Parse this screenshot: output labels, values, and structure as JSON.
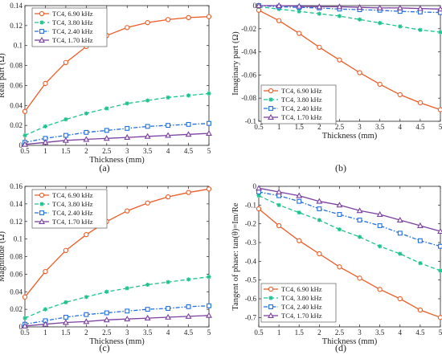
{
  "figure": {
    "panel_letters": [
      "(a)",
      "(b)",
      "(c)",
      "(d)"
    ],
    "shared_xlabel": "Thickness (mm)"
  },
  "series_styles": [
    {
      "name": "TC4, 6.90 kHz",
      "color": "#ec5b24",
      "marker": "circle",
      "dash": "solid"
    },
    {
      "name": "TC4, 3.80 kHz",
      "color": "#1fc28f",
      "marker": "asterisk",
      "dash": "dash"
    },
    {
      "name": "TC4, 2.40 kHz",
      "color": "#1f6fe0",
      "marker": "square",
      "dash": "dashdot"
    },
    {
      "name": "TC4, 1.70 kHz",
      "color": "#7a3fa0",
      "marker": "triangle",
      "dash": "solid"
    }
  ],
  "chart_data": [
    {
      "type": "line",
      "panel": "(a)",
      "xlabel": "Thickness (mm)",
      "ylabel": "Real part (Ω)",
      "x": [
        0.5,
        1,
        1.5,
        2,
        2.5,
        3,
        3.5,
        4,
        4.5,
        5
      ],
      "xlim": [
        0.5,
        5
      ],
      "xticks": [
        "0.5",
        "1",
        "1.5",
        "2",
        "2.5",
        "3",
        "3.5",
        "4",
        "4.5",
        "5"
      ],
      "ylim": [
        0,
        0.14
      ],
      "yticks": [
        "0",
        "0.02",
        "0.04",
        "0.06",
        "0.08",
        "0.1",
        "0.12",
        "0.14"
      ],
      "legend": "top-left",
      "series": [
        {
          "name": "TC4, 6.90 kHz",
          "values": [
            0.034,
            0.062,
            0.083,
            0.099,
            0.11,
            0.118,
            0.123,
            0.126,
            0.128,
            0.129
          ]
        },
        {
          "name": "TC4, 3.80 kHz",
          "values": [
            0.01,
            0.019,
            0.026,
            0.032,
            0.037,
            0.042,
            0.045,
            0.048,
            0.05,
            0.052
          ]
        },
        {
          "name": "TC4, 2.40 kHz",
          "values": [
            0.003,
            0.007,
            0.01,
            0.013,
            0.015,
            0.017,
            0.019,
            0.02,
            0.021,
            0.022
          ]
        },
        {
          "name": "TC4, 1.70 kHz",
          "values": [
            0.001,
            0.003,
            0.005,
            0.006,
            0.007,
            0.008,
            0.009,
            0.01,
            0.011,
            0.012
          ]
        }
      ]
    },
    {
      "type": "line",
      "panel": "(b)",
      "xlabel": "Thickness (mm)",
      "ylabel": "Imaginary part (Ω)",
      "x": [
        0.5,
        1,
        1.5,
        2,
        2.5,
        3,
        3.5,
        4,
        4.5,
        5
      ],
      "xlim": [
        0.5,
        5
      ],
      "xticks": [
        "0.5",
        "1",
        "1.5",
        "2",
        "2.5",
        "3",
        "3.5",
        "4",
        "4.5",
        "5"
      ],
      "ylim": [
        -0.1,
        0
      ],
      "yticks": [
        "0",
        "-0.02",
        "-0.04",
        "-0.06",
        "-0.08",
        "-0.1"
      ],
      "legend": "bottom-left",
      "series": [
        {
          "name": "TC4, 6.90 kHz",
          "values": [
            -0.004,
            -0.013,
            -0.024,
            -0.036,
            -0.047,
            -0.058,
            -0.068,
            -0.077,
            -0.084,
            -0.09
          ]
        },
        {
          "name": "TC4, 3.80 kHz",
          "values": [
            -0.001,
            -0.003,
            -0.005,
            -0.007,
            -0.009,
            -0.012,
            -0.015,
            -0.018,
            -0.021,
            -0.023
          ]
        },
        {
          "name": "TC4, 2.40 kHz",
          "values": [
            0,
            -0.001,
            -0.0015,
            -0.002,
            -0.003,
            -0.0035,
            -0.004,
            -0.005,
            -0.0055,
            -0.006
          ]
        },
        {
          "name": "TC4, 1.70 kHz",
          "values": [
            0,
            0,
            -0.0005,
            -0.001,
            -0.001,
            -0.0015,
            -0.002,
            -0.002,
            -0.0025,
            -0.003
          ]
        }
      ]
    },
    {
      "type": "line",
      "panel": "(c)",
      "xlabel": "Thickness (mm)",
      "ylabel": "Magnitude (Ω)",
      "x": [
        0.5,
        1,
        1.5,
        2,
        2.5,
        3,
        3.5,
        4,
        4.5,
        5
      ],
      "xlim": [
        0.5,
        5
      ],
      "xticks": [
        "0.5",
        "1",
        "1.5",
        "2",
        "2.5",
        "3",
        "3.5",
        "4",
        "4.5",
        "5"
      ],
      "ylim": [
        0,
        0.16
      ],
      "yticks": [
        "0",
        "0.02",
        "0.04",
        "0.06",
        "0.08",
        "0.1",
        "0.12",
        "0.14",
        "0.16"
      ],
      "legend": "top-left",
      "series": [
        {
          "name": "TC4, 6.90 kHz",
          "values": [
            0.034,
            0.063,
            0.087,
            0.105,
            0.12,
            0.132,
            0.141,
            0.148,
            0.153,
            0.157
          ]
        },
        {
          "name": "TC4, 3.80 kHz",
          "values": [
            0.01,
            0.02,
            0.028,
            0.034,
            0.04,
            0.044,
            0.048,
            0.051,
            0.054,
            0.057
          ]
        },
        {
          "name": "TC4, 2.40 kHz",
          "values": [
            0.003,
            0.007,
            0.011,
            0.014,
            0.016,
            0.018,
            0.02,
            0.021,
            0.023,
            0.024
          ]
        },
        {
          "name": "TC4, 1.70 kHz",
          "values": [
            0.001,
            0.003,
            0.005,
            0.006,
            0.008,
            0.009,
            0.01,
            0.011,
            0.012,
            0.013
          ]
        }
      ]
    },
    {
      "type": "line",
      "panel": "(d)",
      "xlabel": "Thickness (mm)",
      "ylabel": "Tangent of phase: tan(θ)=Im/Re",
      "x": [
        0.5,
        1,
        1.5,
        2,
        2.5,
        3,
        3.5,
        4,
        4.5,
        5
      ],
      "xlim": [
        0.5,
        5
      ],
      "xticks": [
        "0.5",
        "1",
        "1.5",
        "2",
        "2.5",
        "3",
        "3.5",
        "4",
        "4.5",
        "5"
      ],
      "ylim": [
        -0.75,
        0
      ],
      "yticks": [
        "0",
        "-0.1",
        "-0.2",
        "-0.3",
        "-0.4",
        "-0.5",
        "-0.6",
        "-0.7"
      ],
      "legend": "bottom-left",
      "series": [
        {
          "name": "TC4, 6.90 kHz",
          "values": [
            -0.12,
            -0.21,
            -0.29,
            -0.36,
            -0.43,
            -0.49,
            -0.55,
            -0.6,
            -0.66,
            -0.7
          ]
        },
        {
          "name": "TC4, 3.80 kHz",
          "values": [
            -0.05,
            -0.1,
            -0.14,
            -0.18,
            -0.23,
            -0.27,
            -0.32,
            -0.36,
            -0.41,
            -0.45
          ]
        },
        {
          "name": "TC4, 2.40 kHz",
          "values": [
            -0.03,
            -0.05,
            -0.08,
            -0.12,
            -0.15,
            -0.18,
            -0.21,
            -0.25,
            -0.29,
            -0.32
          ]
        },
        {
          "name": "TC4, 1.70 kHz",
          "values": [
            -0.01,
            -0.03,
            -0.05,
            -0.08,
            -0.1,
            -0.13,
            -0.15,
            -0.18,
            -0.21,
            -0.24
          ]
        }
      ]
    }
  ]
}
